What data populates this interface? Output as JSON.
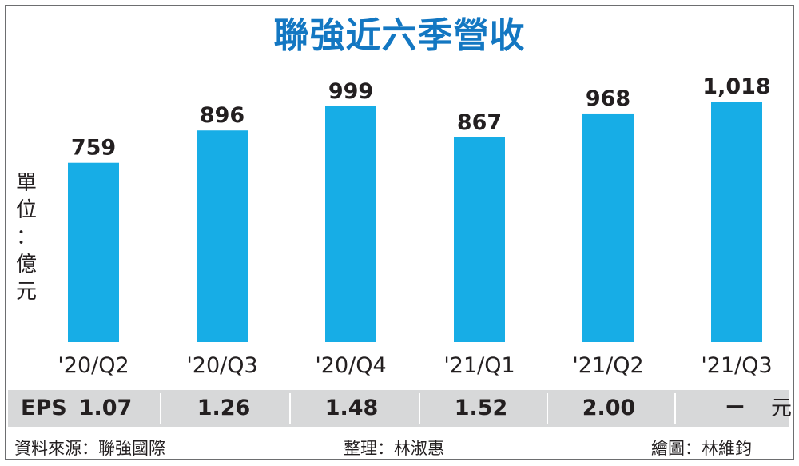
{
  "chart_data": {
    "type": "bar",
    "title": "聯強近六季營收",
    "unit_label": [
      "單",
      "位",
      "：",
      "億",
      "元"
    ],
    "categories": [
      "'20/Q2",
      "'20/Q3",
      "'20/Q4",
      "'21/Q1",
      "'21/Q2",
      "'21/Q3"
    ],
    "values": [
      759,
      896,
      999,
      867,
      968,
      1018
    ],
    "value_labels": [
      "759",
      "896",
      "999",
      "867",
      "968",
      "1,018"
    ],
    "bar_color": "#17ade6",
    "title_color": "#1377c2",
    "grid": false
  },
  "eps": {
    "label": "EPS",
    "values": [
      "1.07",
      "1.26",
      "1.48",
      "1.52",
      "2.00",
      "－"
    ],
    "unit": "元"
  },
  "footer": {
    "source": "資料來源：聯強國際",
    "editor": "整理：林淑惠",
    "graphic": "繪圖：林維鈞"
  }
}
